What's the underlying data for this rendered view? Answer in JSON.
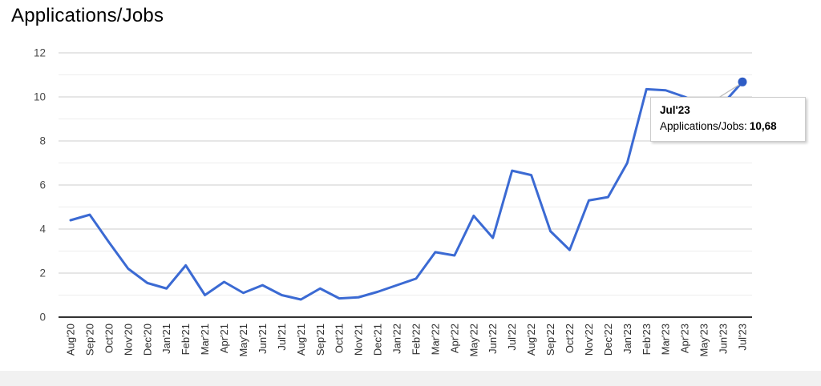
{
  "chart_data": {
    "type": "line",
    "title": "Applications/Jobs",
    "x": [
      "Aug'20",
      "Sep'20",
      "Oct'20",
      "Nov'20",
      "Dec'20",
      "Jan'21",
      "Feb'21",
      "Mar'21",
      "Apr'21",
      "May'21",
      "Jun'21",
      "Jul'21",
      "Aug'21",
      "Sep'21",
      "Oct'21",
      "Nov'21",
      "Dec'21",
      "Jan'22",
      "Feb'22",
      "Mar'22",
      "Apr'22",
      "May'22",
      "Jun'22",
      "Jul'22",
      "Aug'22",
      "Sep'22",
      "Oct'22",
      "Nov'22",
      "Dec'22",
      "Jan'23",
      "Feb'23",
      "Mar'23",
      "Apr'23",
      "May'23",
      "Jun'23",
      "Jul'23"
    ],
    "values": [
      4.4,
      4.65,
      3.4,
      2.2,
      1.55,
      1.3,
      2.35,
      1.0,
      1.6,
      1.1,
      1.45,
      1.0,
      0.8,
      1.3,
      0.85,
      0.9,
      1.15,
      1.45,
      1.75,
      2.95,
      2.8,
      4.6,
      3.6,
      6.65,
      6.45,
      3.9,
      3.05,
      5.3,
      5.45,
      7.0,
      10.35,
      10.3,
      10.0,
      9.6,
      9.7,
      10.68
    ],
    "xlabel": "",
    "ylabel": "",
    "ylim": [
      0,
      12
    ],
    "yticks": [
      0,
      2,
      4,
      6,
      8,
      10,
      12
    ],
    "minor_yticks": [
      1,
      3,
      5,
      7,
      9,
      11
    ],
    "grid": "horizontal major and minor gridlines, dark baseline at 0",
    "legend": "none",
    "line_color": "#3b6ad3",
    "point_color": "#2e5cc5",
    "highlight_index": 35,
    "highlighted_point": {
      "x": "Jul'23",
      "value": 10.68
    }
  },
  "tooltip": {
    "title": "Jul'23",
    "label": "Applications/Jobs:",
    "value": "10,68"
  }
}
